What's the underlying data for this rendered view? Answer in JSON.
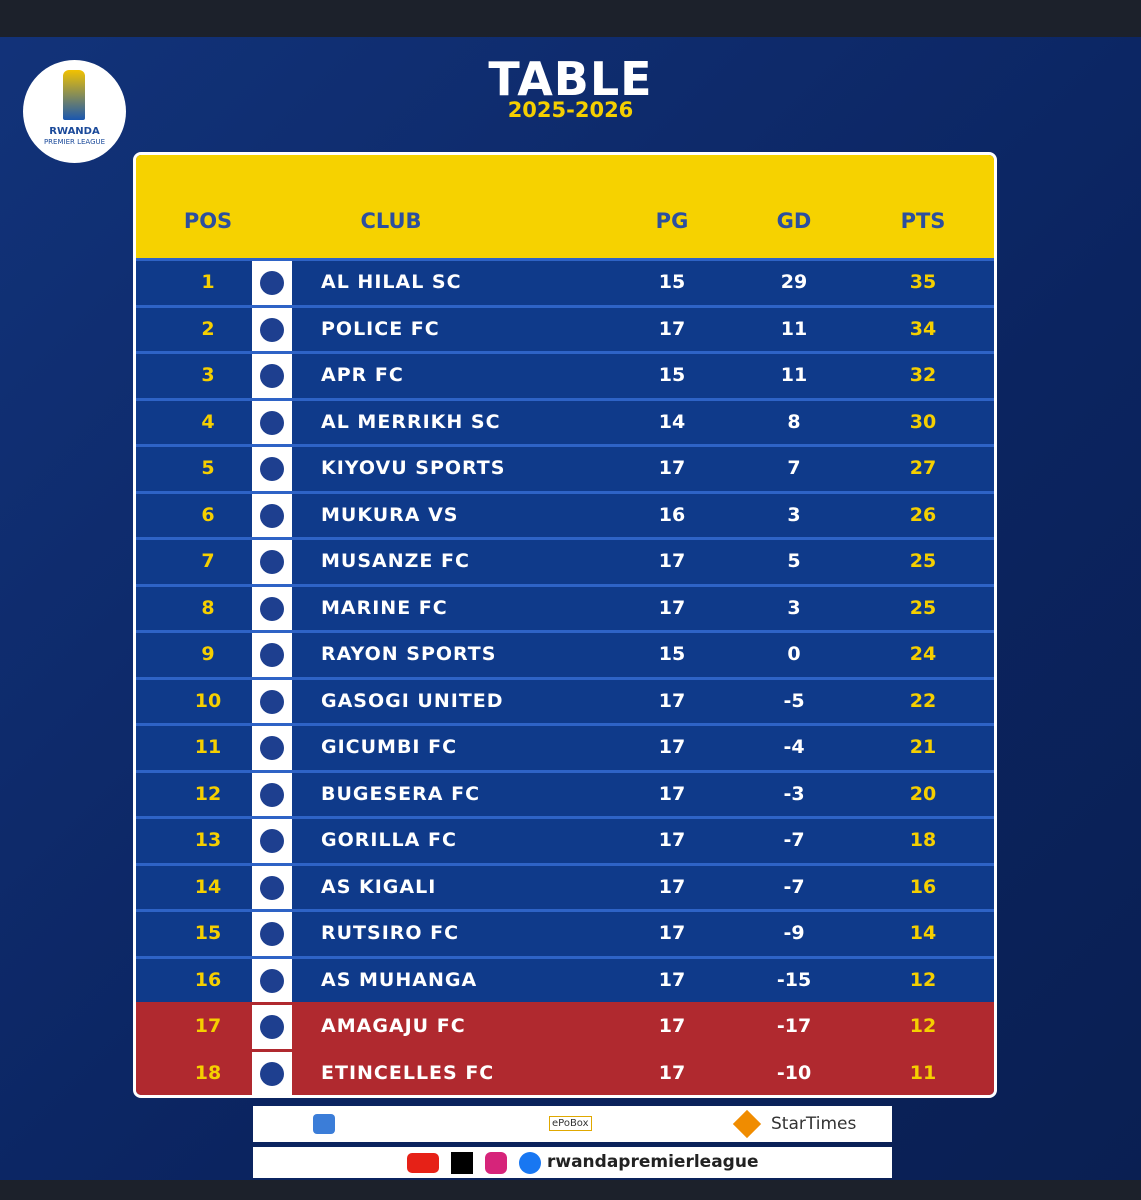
{
  "header": {
    "title": "TABLE",
    "season": "2025-2026",
    "logo_line1": "RWANDA",
    "logo_line2": "PREMIER LEAGUE"
  },
  "table": {
    "columns": [
      "POS",
      "CLUB",
      "PG",
      "GD",
      "PTS"
    ],
    "rows": [
      [
        1,
        "AL HILAL SC",
        15,
        29,
        35
      ],
      [
        2,
        "POLICE FC",
        17,
        11,
        34
      ],
      [
        3,
        "APR FC",
        15,
        11,
        32
      ],
      [
        4,
        "AL MERRIKH SC",
        14,
        8,
        30
      ],
      [
        5,
        "KIYOVU SPORTS",
        17,
        7,
        27
      ],
      [
        6,
        "MUKURA VS",
        16,
        3,
        26
      ],
      [
        7,
        "MUSANZE FC",
        17,
        5,
        25
      ],
      [
        8,
        "MARINE FC",
        17,
        3,
        25
      ],
      [
        9,
        "RAYON SPORTS",
        15,
        0,
        24
      ],
      [
        10,
        "GASOGI UNITED",
        17,
        -5,
        22
      ],
      [
        11,
        "GICUMBI FC",
        17,
        -4,
        21
      ],
      [
        12,
        "BUGESERA FC",
        17,
        -3,
        20
      ],
      [
        13,
        "GORILLA FC",
        17,
        -7,
        18
      ],
      [
        14,
        "AS KIGALI",
        17,
        -7,
        16
      ],
      [
        15,
        "RUTSIRO FC",
        17,
        -9,
        14
      ],
      [
        16,
        "AS MUHANGA",
        17,
        -15,
        12
      ],
      [
        17,
        "AMAGAJU FC",
        17,
        -17,
        12
      ],
      [
        18,
        "ETINCELLES FC",
        17,
        -10,
        11
      ]
    ]
  },
  "footer": {
    "sponsor1": "ePoBox",
    "sponsor2": "StarTimes",
    "handle": "rwandapremierleague"
  }
}
